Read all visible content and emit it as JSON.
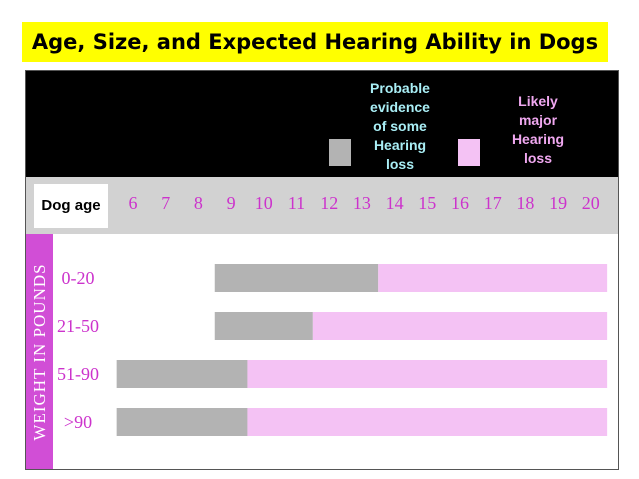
{
  "title": "Age, Size, and Expected Hearing Ability in Dogs",
  "legend": {
    "probable": {
      "label": "Probable evidence of some Hearing loss",
      "lines": [
        "Probable",
        "evidence",
        "of some",
        "Hearing",
        "loss"
      ],
      "color": "#b3b3b3",
      "text_color": "#a9eef5"
    },
    "likely": {
      "label": "Likely major Hearing loss",
      "lines": [
        "Likely",
        "major",
        "Hearing",
        "loss"
      ],
      "color": "#f4c2f4",
      "text_color": "#f0a8f0"
    }
  },
  "colors": {
    "background": "#000000",
    "age_row": "#d2d2d2",
    "weight_label_bg": "#d14ed6",
    "tick_color": "#cc33cc",
    "probable_bar": "#b3b3b3",
    "likely_bar": "#f4c2f4"
  },
  "chart_data": {
    "type": "bar",
    "orientation": "horizontal-range",
    "xlabel": "Dog age",
    "ylabel": "WEIGHT IN POUNDS",
    "x_ticks": [
      6,
      7,
      8,
      9,
      10,
      11,
      12,
      13,
      14,
      15,
      16,
      17,
      18,
      19,
      20
    ],
    "xlim": [
      6,
      20
    ],
    "categories": [
      "0-20",
      "21-50",
      "51-90",
      ">90"
    ],
    "series": [
      {
        "name": "Probable evidence of some Hearing loss",
        "ranges": [
          [
            8.5,
            13.5
          ],
          [
            8.5,
            11.5
          ],
          [
            5.5,
            9.5
          ],
          [
            5.5,
            9.5
          ]
        ]
      },
      {
        "name": "Likely major Hearing loss",
        "ranges": [
          [
            13.5,
            20.5
          ],
          [
            11.5,
            20.5
          ],
          [
            9.5,
            20.5
          ],
          [
            9.5,
            20.5
          ]
        ]
      }
    ]
  }
}
